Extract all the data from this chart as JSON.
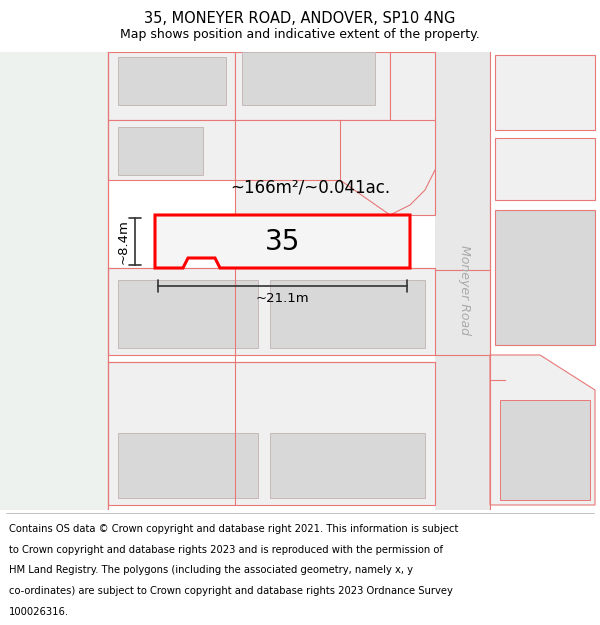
{
  "title": "35, MONEYER ROAD, ANDOVER, SP10 4NG",
  "subtitle": "Map shows position and indicative extent of the property.",
  "area_text": "~166m²/~0.041ac.",
  "width_text": "~21.1m",
  "height_text": "~8.4m",
  "property_number": "35",
  "bg_color": "#f7f7f5",
  "left_green": "#eef2ee",
  "road_color": "#e8e8e8",
  "plot_fill": "#f0f0f0",
  "bld_fill": "#d8d8d8",
  "bld_edge": "#c8b8b8",
  "boundary_color": "#e87878",
  "highlight_color": "#ff0000",
  "dim_color": "#333333",
  "road_label_color": "#aaaaaa",
  "title_fontsize": 10.5,
  "subtitle_fontsize": 9,
  "footer_fontsize": 7.2,
  "footer_lines": [
    "Contains OS data © Crown copyright and database right 2021. This information is subject",
    "to Crown copyright and database rights 2023 and is reproduced with the permission of",
    "HM Land Registry. The polygons (including the associated geometry, namely x, y",
    "co-ordinates) are subject to Crown copyright and database rights 2023 Ordnance Survey",
    "100026316."
  ]
}
